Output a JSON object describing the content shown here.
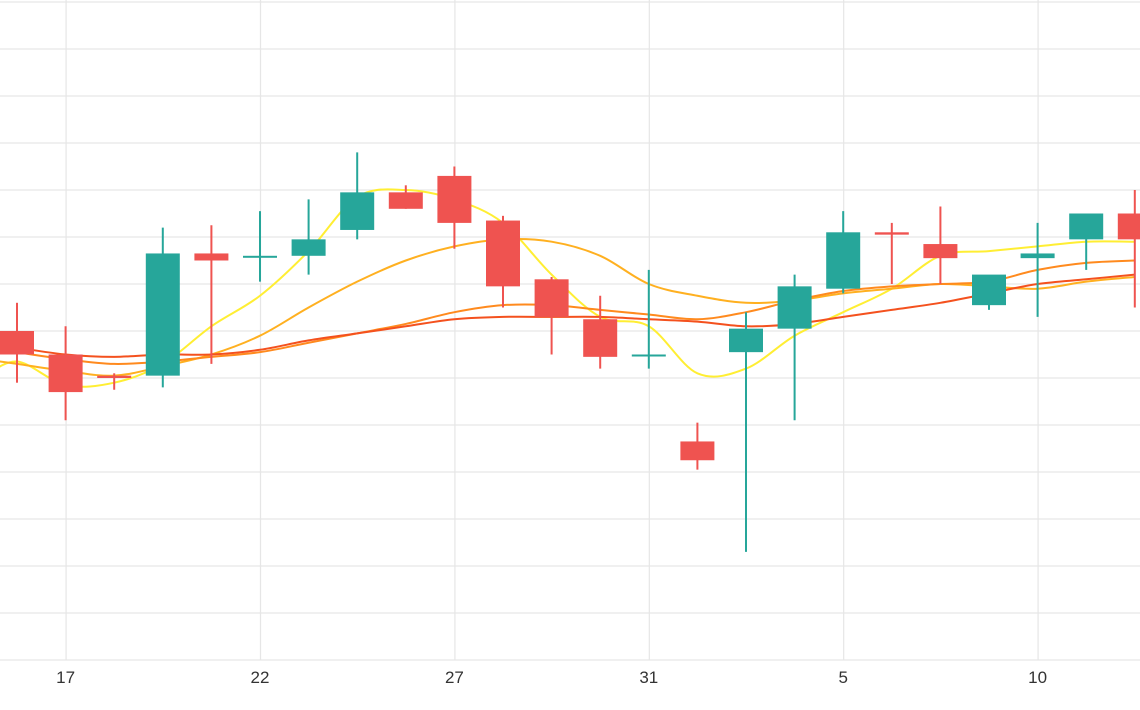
{
  "chart_data": {
    "type": "candlestick",
    "x_tick_labels": [
      "17",
      "22",
      "27",
      "31",
      "5",
      "10"
    ],
    "x_tick_index": [
      1,
      5,
      9,
      13,
      17,
      21
    ],
    "ylim": [
      0,
      14
    ],
    "grid": true,
    "colors": {
      "up": "#26a69a",
      "down": "#ef5350",
      "grid": "#e6e6e6",
      "ma_lines": [
        "#ffee33",
        "#ffb020",
        "#ff8a1e",
        "#f4511e"
      ]
    },
    "candles": [
      {
        "o": 7.0,
        "h": 7.6,
        "l": 5.9,
        "c": 6.5
      },
      {
        "o": 6.5,
        "h": 7.1,
        "l": 5.1,
        "c": 5.7
      },
      {
        "o": 6.05,
        "h": 6.1,
        "l": 5.75,
        "c": 6.0
      },
      {
        "o": 6.05,
        "h": 9.2,
        "l": 5.8,
        "c": 8.65
      },
      {
        "o": 8.65,
        "h": 9.25,
        "l": 6.3,
        "c": 8.5
      },
      {
        "o": 8.6,
        "h": 9.55,
        "l": 8.05,
        "c": 8.6
      },
      {
        "o": 8.6,
        "h": 9.8,
        "l": 8.2,
        "c": 8.95
      },
      {
        "o": 9.15,
        "h": 10.8,
        "l": 8.95,
        "c": 9.95
      },
      {
        "o": 9.95,
        "h": 10.1,
        "l": 9.6,
        "c": 9.6
      },
      {
        "o": 10.3,
        "h": 10.5,
        "l": 8.75,
        "c": 9.3
      },
      {
        "o": 9.35,
        "h": 9.45,
        "l": 7.5,
        "c": 7.95
      },
      {
        "o": 8.1,
        "h": 8.15,
        "l": 6.5,
        "c": 7.3
      },
      {
        "o": 7.25,
        "h": 7.75,
        "l": 6.2,
        "c": 6.45
      },
      {
        "o": 6.5,
        "h": 8.3,
        "l": 6.2,
        "c": 6.5
      },
      {
        "o": 4.65,
        "h": 5.05,
        "l": 4.05,
        "c": 4.25
      },
      {
        "o": 6.55,
        "h": 7.4,
        "l": 2.3,
        "c": 7.05
      },
      {
        "o": 7.05,
        "h": 8.2,
        "l": 5.1,
        "c": 7.95
      },
      {
        "o": 7.9,
        "h": 9.55,
        "l": 7.8,
        "c": 9.1
      },
      {
        "o": 9.1,
        "h": 9.3,
        "l": 8.0,
        "c": 9.05
      },
      {
        "o": 8.85,
        "h": 9.65,
        "l": 8.0,
        "c": 8.55
      },
      {
        "o": 7.55,
        "h": 8.15,
        "l": 7.45,
        "c": 8.2
      },
      {
        "o": 8.55,
        "h": 9.3,
        "l": 7.3,
        "c": 8.65
      },
      {
        "o": 8.95,
        "h": 9.5,
        "l": 8.3,
        "c": 9.5
      },
      {
        "o": 9.5,
        "h": 10.0,
        "l": 7.5,
        "c": 8.95
      }
    ],
    "series": [
      {
        "values": [
          [
            -0.7,
            6.0
          ],
          [
            0,
            6.35
          ],
          [
            1,
            5.85
          ],
          [
            2,
            5.9
          ],
          [
            3,
            6.3
          ],
          [
            4,
            7.1
          ],
          [
            5,
            7.75
          ],
          [
            6,
            8.7
          ],
          [
            7,
            9.85
          ],
          [
            8,
            10.0
          ],
          [
            9,
            9.8
          ],
          [
            10,
            9.3
          ],
          [
            11,
            8.2
          ],
          [
            12,
            7.3
          ],
          [
            13,
            7.1
          ],
          [
            14,
            6.1
          ],
          [
            15,
            6.2
          ],
          [
            16,
            6.9
          ],
          [
            17,
            7.4
          ],
          [
            18,
            7.9
          ],
          [
            19,
            8.6
          ],
          [
            20,
            8.7
          ],
          [
            21,
            8.8
          ],
          [
            22,
            8.9
          ],
          [
            23,
            8.9
          ]
        ]
      },
      {
        "values": [
          [
            -0.7,
            6.4
          ],
          [
            0,
            6.3
          ],
          [
            1,
            6.15
          ],
          [
            2,
            6.05
          ],
          [
            3,
            6.25
          ],
          [
            4,
            6.5
          ],
          [
            5,
            6.9
          ],
          [
            6,
            7.5
          ],
          [
            7,
            8.05
          ],
          [
            8,
            8.5
          ],
          [
            9,
            8.8
          ],
          [
            10,
            8.95
          ],
          [
            11,
            8.9
          ],
          [
            12,
            8.6
          ],
          [
            13,
            8.0
          ],
          [
            14,
            7.75
          ],
          [
            15,
            7.6
          ],
          [
            16,
            7.65
          ],
          [
            17,
            7.8
          ],
          [
            18,
            7.9
          ],
          [
            19,
            8.0
          ],
          [
            20,
            7.95
          ],
          [
            21,
            7.9
          ],
          [
            22,
            8.05
          ],
          [
            23,
            8.15
          ]
        ]
      },
      {
        "values": [
          [
            -0.7,
            6.7
          ],
          [
            0,
            6.55
          ],
          [
            1,
            6.4
          ],
          [
            2,
            6.3
          ],
          [
            3,
            6.35
          ],
          [
            4,
            6.45
          ],
          [
            5,
            6.55
          ],
          [
            6,
            6.75
          ],
          [
            7,
            6.95
          ],
          [
            8,
            7.15
          ],
          [
            9,
            7.4
          ],
          [
            10,
            7.55
          ],
          [
            11,
            7.55
          ],
          [
            12,
            7.45
          ],
          [
            13,
            7.35
          ],
          [
            14,
            7.25
          ],
          [
            15,
            7.4
          ],
          [
            16,
            7.65
          ],
          [
            17,
            7.85
          ],
          [
            18,
            7.95
          ],
          [
            19,
            8.0
          ],
          [
            20,
            8.05
          ],
          [
            21,
            8.3
          ],
          [
            22,
            8.45
          ],
          [
            23,
            8.5
          ]
        ]
      },
      {
        "values": [
          [
            -0.7,
            6.8
          ],
          [
            0,
            6.65
          ],
          [
            1,
            6.5
          ],
          [
            2,
            6.45
          ],
          [
            3,
            6.5
          ],
          [
            4,
            6.5
          ],
          [
            5,
            6.6
          ],
          [
            6,
            6.8
          ],
          [
            7,
            6.95
          ],
          [
            8,
            7.1
          ],
          [
            9,
            7.25
          ],
          [
            10,
            7.3
          ],
          [
            11,
            7.3
          ],
          [
            12,
            7.3
          ],
          [
            13,
            7.25
          ],
          [
            14,
            7.2
          ],
          [
            15,
            7.1
          ],
          [
            16,
            7.15
          ],
          [
            17,
            7.3
          ],
          [
            18,
            7.45
          ],
          [
            19,
            7.6
          ],
          [
            20,
            7.8
          ],
          [
            21,
            8.0
          ],
          [
            22,
            8.1
          ],
          [
            23,
            8.2
          ]
        ]
      }
    ]
  }
}
